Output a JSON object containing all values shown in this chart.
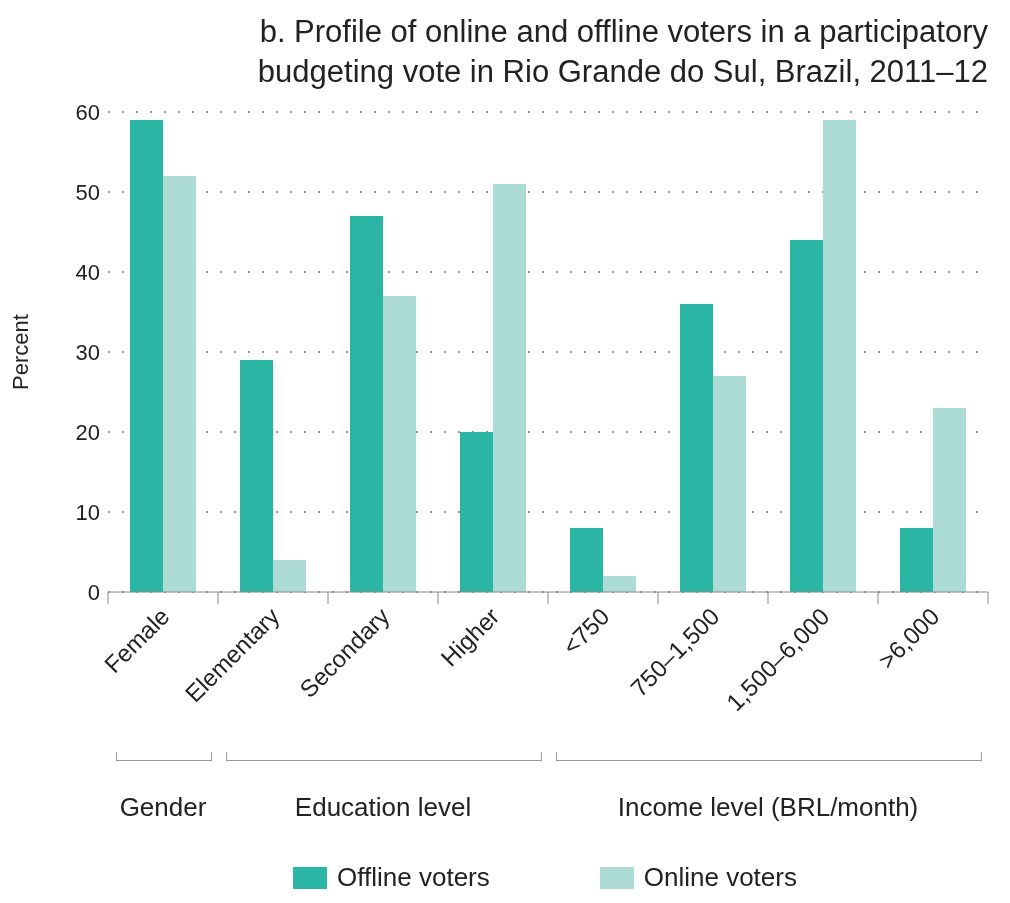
{
  "chart_data": {
    "type": "bar",
    "title": "b. Profile of online and offline voters in a participatory budgeting vote in Rio Grande do Sul, Brazil, 2011–12",
    "ylabel": "Percent",
    "categories": [
      "Female",
      "Elementary",
      "Secondary",
      "Higher",
      "<750",
      "750–1,500",
      "1,500–6,000",
      ">6,000"
    ],
    "series": [
      {
        "name": "Offline voters",
        "color": "#2bb5a4",
        "values": [
          59,
          29,
          47,
          20,
          8,
          36,
          44,
          8
        ]
      },
      {
        "name": "Online voters",
        "color": "#acdcd5",
        "values": [
          52,
          4,
          37,
          51,
          2,
          27,
          59,
          23
        ]
      }
    ],
    "ylim": [
      0,
      60
    ],
    "yticks": [
      0,
      10,
      20,
      30,
      40,
      50,
      60
    ],
    "grid": "y",
    "legend": "bottom",
    "annotations": [
      "Gender",
      "Education level",
      "Income level (BRL/month)"
    ]
  }
}
